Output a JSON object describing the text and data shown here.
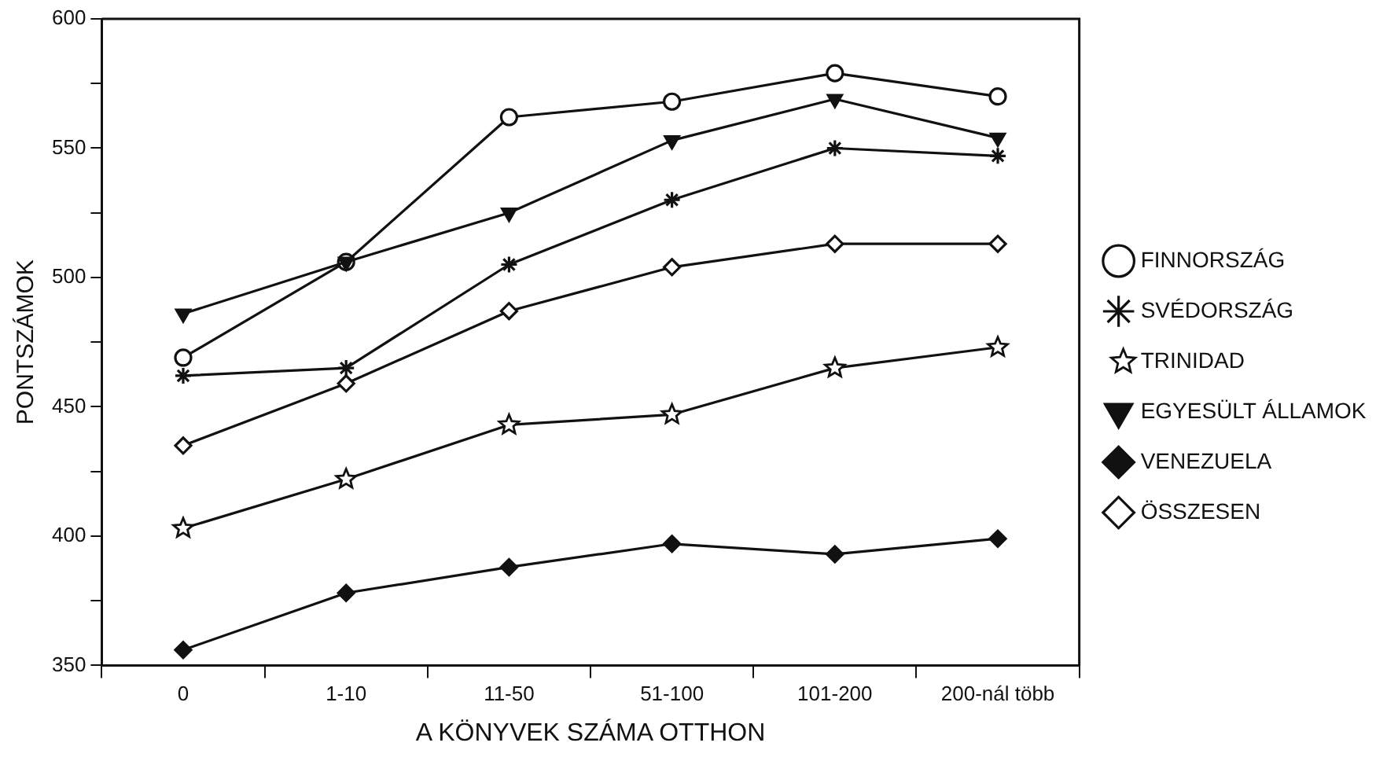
{
  "chart_data": {
    "type": "line",
    "xlabel": "A KÖNYVEK SZÁMA OTTHON",
    "ylabel": "PONTSZÁMOK",
    "categories": [
      "0",
      "1-10",
      "11-50",
      "51-100",
      "101-200",
      "200-nál több"
    ],
    "series": [
      {
        "name": "FINNORSZÁG",
        "color": "#111111",
        "marker": "circle",
        "values": [
          469,
          506,
          562,
          568,
          579,
          570
        ]
      },
      {
        "name": "SVÉDORSZÁG",
        "color": "#111111",
        "marker": "cross",
        "values": [
          462,
          465,
          505,
          530,
          550,
          547
        ]
      },
      {
        "name": "TRINIDAD",
        "color": "#111111",
        "marker": "star",
        "values": [
          403,
          422,
          443,
          447,
          465,
          473
        ]
      },
      {
        "name": "EGYESÜLT ÁLLAMOK",
        "color": "#111111",
        "marker": "triangle",
        "values": [
          486,
          506,
          525,
          553,
          569,
          554
        ]
      },
      {
        "name": "VENEZUELA",
        "color": "#111111",
        "marker": "diamond",
        "values": [
          356,
          378,
          388,
          397,
          393,
          399
        ]
      },
      {
        "name": "ÖSSZESEN",
        "color": "#111111",
        "marker": "diamond",
        "values": [
          435,
          459,
          487,
          504,
          513,
          513
        ]
      }
    ],
    "ylim": [
      350,
      600
    ],
    "yticks": [
      350,
      {
        "value": 375,
        "label": null
      },
      400,
      {
        "value": 425,
        "label": null
      },
      450,
      {
        "value": 475,
        "label": null
      },
      500,
      {
        "value": 525,
        "label": null
      },
      550,
      {
        "value": 575,
        "label": null
      },
      600
    ],
    "grid": false,
    "legend": "right",
    "line_style": "solid"
  }
}
